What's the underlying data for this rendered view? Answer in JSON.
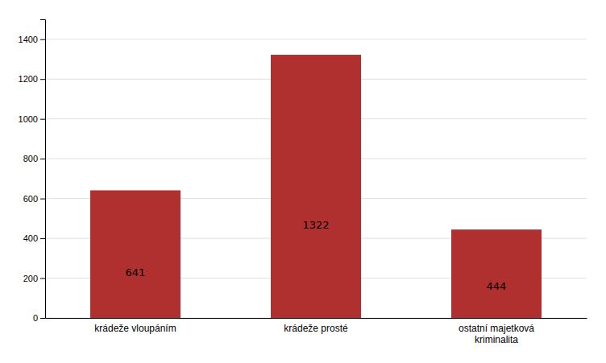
{
  "chart_data": {
    "type": "bar",
    "categories": [
      "krádeže vloupáním",
      "krádeže prosté",
      "ostatní majetková\nkriminalita"
    ],
    "values": [
      641,
      1322,
      444
    ],
    "color": "#B03030",
    "data_labels": true,
    "ylim": [
      0,
      1500
    ],
    "yticks": [
      0,
      200,
      400,
      600,
      800,
      1000,
      1200,
      1400
    ],
    "grid": true
  }
}
